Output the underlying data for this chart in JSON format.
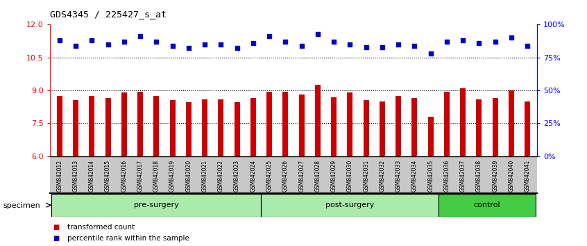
{
  "title": "GDS4345 / 225427_s_at",
  "samples": [
    "GSM842012",
    "GSM842013",
    "GSM842014",
    "GSM842015",
    "GSM842016",
    "GSM842017",
    "GSM842018",
    "GSM842019",
    "GSM842020",
    "GSM842021",
    "GSM842022",
    "GSM842023",
    "GSM842024",
    "GSM842025",
    "GSM842026",
    "GSM842027",
    "GSM842028",
    "GSM842029",
    "GSM842030",
    "GSM842031",
    "GSM842032",
    "GSM842033",
    "GSM842034",
    "GSM842035",
    "GSM842036",
    "GSM842037",
    "GSM842038",
    "GSM842039",
    "GSM842040",
    "GSM842041"
  ],
  "bar_values": [
    8.75,
    8.55,
    8.75,
    8.65,
    8.9,
    8.95,
    8.75,
    8.55,
    8.45,
    8.6,
    8.6,
    8.45,
    8.65,
    8.95,
    8.95,
    8.8,
    9.25,
    8.7,
    8.9,
    8.55,
    8.5,
    8.75,
    8.65,
    7.8,
    8.95,
    9.1,
    8.6,
    8.65,
    9.0,
    8.5
  ],
  "percentile_values": [
    88,
    84,
    88,
    85,
    87,
    91,
    87,
    84,
    82,
    85,
    85,
    82,
    86,
    91,
    87,
    84,
    93,
    87,
    85,
    83,
    83,
    85,
    84,
    78,
    87,
    88,
    86,
    87,
    90,
    84
  ],
  "groups": [
    {
      "label": "pre-surgery",
      "start": 0,
      "end": 13,
      "color": "#aaeaaa"
    },
    {
      "label": "post-surgery",
      "start": 13,
      "end": 24,
      "color": "#aaeaaa"
    },
    {
      "label": "control",
      "start": 24,
      "end": 30,
      "color": "#44cc44"
    }
  ],
  "ylim_left": [
    6,
    12
  ],
  "ylim_right": [
    0,
    100
  ],
  "yticks_left": [
    6,
    7.5,
    9,
    10.5,
    12
  ],
  "yticks_right": [
    0,
    25,
    50,
    75,
    100
  ],
  "bar_color": "#CC0000",
  "dot_color": "#0000CC",
  "hlines": [
    7.5,
    9.0,
    10.5
  ],
  "legend_items": [
    {
      "label": "transformed count",
      "color": "#CC0000"
    },
    {
      "label": "percentile rank within the sample",
      "color": "#0000CC"
    }
  ],
  "specimen_label": "specimen",
  "xtick_bg_color": "#c8c8c8"
}
